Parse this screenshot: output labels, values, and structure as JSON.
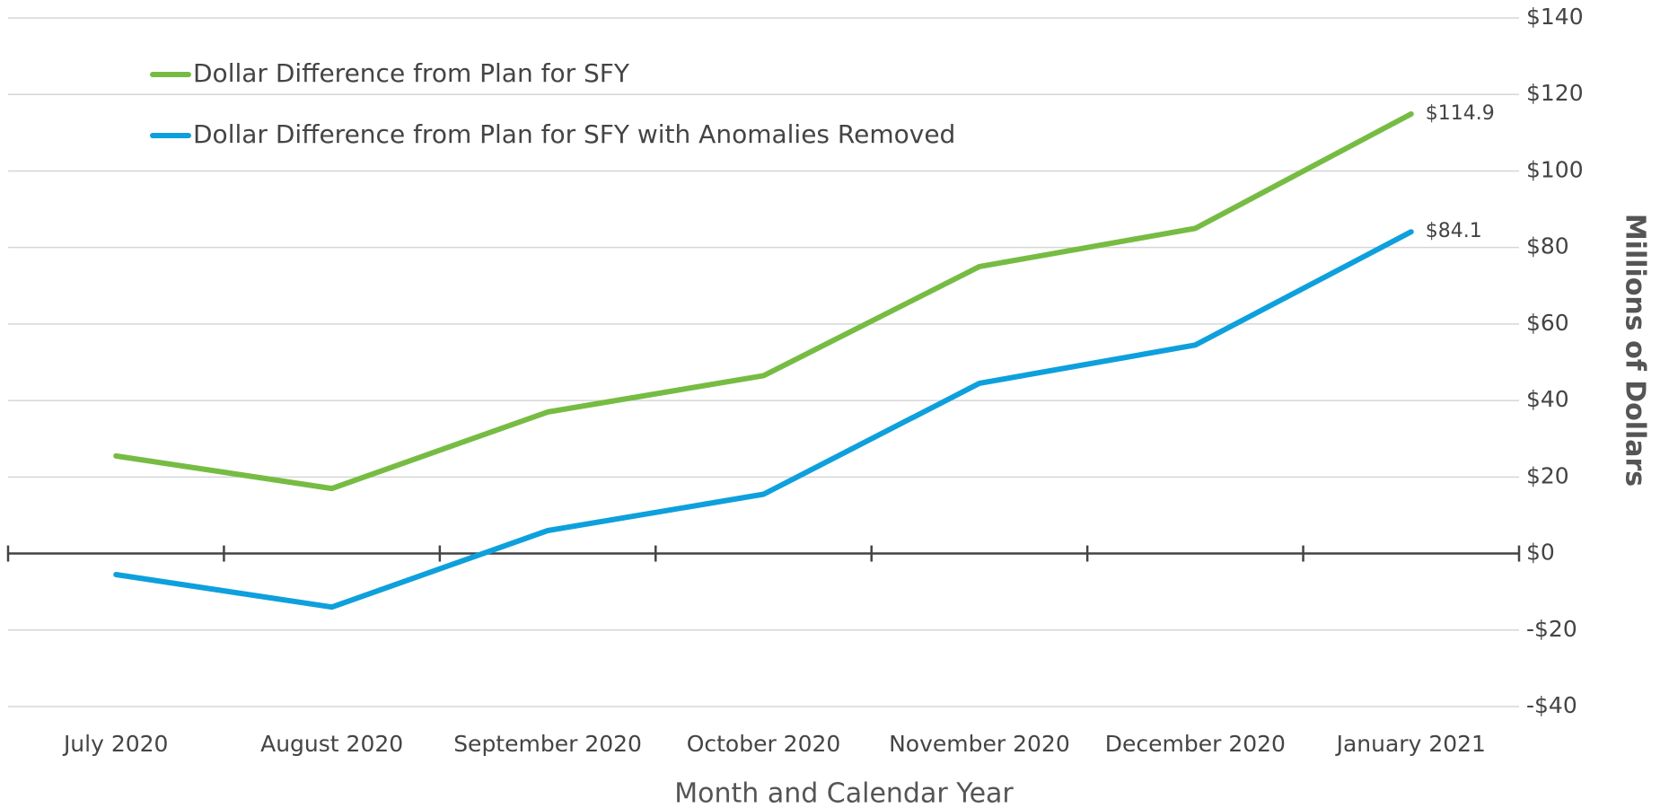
{
  "chart_data": {
    "type": "line",
    "x_label": "Month and Calendar Year",
    "y_label": "Millions of Dollars",
    "categories": [
      "July 2020",
      "August 2020",
      "September 2020",
      "October 2020",
      "November 2020",
      "December 2020",
      "January 2021"
    ],
    "series": [
      {
        "name": "Dollar Difference from Plan for SFY",
        "color": "#76bc43",
        "values": [
          25.5,
          17,
          37,
          46.5,
          75,
          85,
          114.9
        ],
        "value_labels": [
          null,
          null,
          null,
          null,
          null,
          null,
          "$114.9"
        ]
      },
      {
        "name": "Dollar Difference from Plan for SFY with Anomalies Removed",
        "color": "#0ea0dc",
        "values": [
          -5.5,
          -14,
          6,
          15.5,
          44.5,
          54.5,
          84.1
        ],
        "value_labels": [
          null,
          null,
          null,
          null,
          null,
          null,
          "$84.1"
        ]
      }
    ],
    "ylim": [
      -40,
      140
    ],
    "yticks": [
      {
        "value": -40,
        "label": "-$40"
      },
      {
        "value": -20,
        "label": "-$20"
      },
      {
        "value": 0,
        "label": "$0"
      },
      {
        "value": 20,
        "label": "$20"
      },
      {
        "value": 40,
        "label": "$40"
      },
      {
        "value": 60,
        "label": "$60"
      },
      {
        "value": 80,
        "label": "$80"
      },
      {
        "value": 100,
        "label": "$100"
      },
      {
        "value": 120,
        "label": "$120"
      },
      {
        "value": 140,
        "label": "$140"
      }
    ],
    "grid": true,
    "legend": "top-left"
  }
}
